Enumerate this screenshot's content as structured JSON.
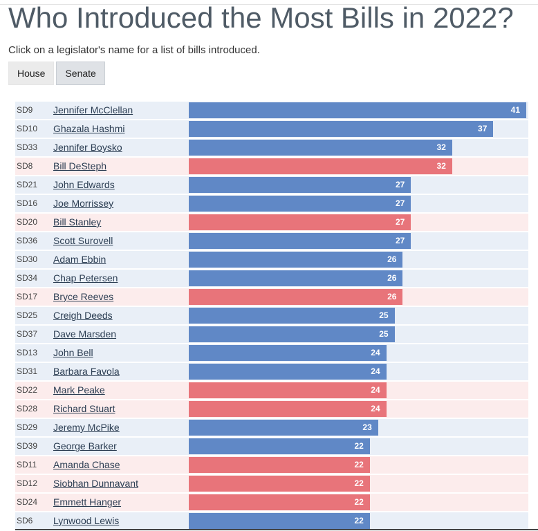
{
  "page": {
    "title": "Who Introduced the Most Bills in 2022?",
    "subtitle": "Click on a legislator's name for a list of bills introduced.",
    "tabs": [
      {
        "label": "House",
        "active": false
      },
      {
        "label": "Senate",
        "active": true
      }
    ]
  },
  "colors": {
    "dem_bar": "#6088c6",
    "rep_bar": "#e8747a",
    "dem_row": "#e9eff7",
    "rep_row": "#fcecec"
  },
  "chart_data": {
    "type": "bar",
    "orientation": "horizontal",
    "xlim": [
      0,
      41
    ],
    "grid": false,
    "rows": [
      {
        "district": "SD9",
        "name": "Jennifer McClellan",
        "value": 41,
        "party": "dem"
      },
      {
        "district": "SD10",
        "name": "Ghazala Hashmi",
        "value": 37,
        "party": "dem"
      },
      {
        "district": "SD33",
        "name": "Jennifer Boysko",
        "value": 32,
        "party": "dem"
      },
      {
        "district": "SD8",
        "name": "Bill DeSteph",
        "value": 32,
        "party": "rep"
      },
      {
        "district": "SD21",
        "name": "John Edwards",
        "value": 27,
        "party": "dem"
      },
      {
        "district": "SD16",
        "name": "Joe Morrissey",
        "value": 27,
        "party": "dem"
      },
      {
        "district": "SD20",
        "name": "Bill Stanley",
        "value": 27,
        "party": "rep"
      },
      {
        "district": "SD36",
        "name": "Scott Surovell",
        "value": 27,
        "party": "dem"
      },
      {
        "district": "SD30",
        "name": "Adam Ebbin",
        "value": 26,
        "party": "dem"
      },
      {
        "district": "SD34",
        "name": "Chap Petersen",
        "value": 26,
        "party": "dem"
      },
      {
        "district": "SD17",
        "name": "Bryce Reeves",
        "value": 26,
        "party": "rep"
      },
      {
        "district": "SD25",
        "name": "Creigh Deeds",
        "value": 25,
        "party": "dem"
      },
      {
        "district": "SD37",
        "name": "Dave Marsden",
        "value": 25,
        "party": "dem"
      },
      {
        "district": "SD13",
        "name": "John Bell",
        "value": 24,
        "party": "dem"
      },
      {
        "district": "SD31",
        "name": "Barbara Favola",
        "value": 24,
        "party": "dem"
      },
      {
        "district": "SD22",
        "name": "Mark Peake",
        "value": 24,
        "party": "rep"
      },
      {
        "district": "SD28",
        "name": "Richard Stuart",
        "value": 24,
        "party": "rep"
      },
      {
        "district": "SD29",
        "name": "Jeremy McPike",
        "value": 23,
        "party": "dem"
      },
      {
        "district": "SD39",
        "name": "George Barker",
        "value": 22,
        "party": "dem"
      },
      {
        "district": "SD11",
        "name": "Amanda Chase",
        "value": 22,
        "party": "rep"
      },
      {
        "district": "SD12",
        "name": "Siobhan Dunnavant",
        "value": 22,
        "party": "rep"
      },
      {
        "district": "SD24",
        "name": "Emmett Hanger",
        "value": 22,
        "party": "rep"
      },
      {
        "district": "SD6",
        "name": "Lynwood Lewis",
        "value": 22,
        "party": "dem"
      }
    ]
  }
}
